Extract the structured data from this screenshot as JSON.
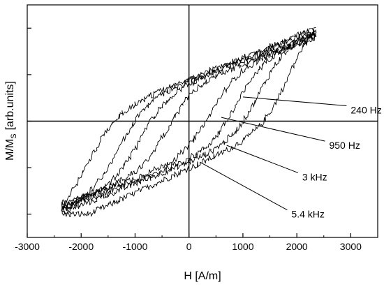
{
  "chart_data": {
    "type": "line",
    "xlabel": "H [A/m]",
    "ylabel_main": "M/M",
    "ylabel_sub": "S",
    "ylabel_unit": "[arb.units]",
    "xlim": [
      -3000,
      3500
    ],
    "ylim": [
      -1.25,
      1.25
    ],
    "x_ticks": [
      -3000,
      -2000,
      -1000,
      0,
      1000,
      2000,
      3000
    ],
    "y_tick_values": [
      -1.0,
      -0.5,
      0.0,
      0.5,
      1.0
    ],
    "y_tick_labels_shown": false,
    "zero_lines": true,
    "series": [
      {
        "name": "240 Hz",
        "coercive_field": 1850,
        "saturation_field": 2350,
        "saturation_m": 1.0,
        "remanence": 0.6
      },
      {
        "name": "950 Hz",
        "coercive_field": 1300,
        "saturation_field": 2350,
        "saturation_m": 0.97,
        "remanence": 0.45
      },
      {
        "name": "3 kHz",
        "coercive_field": 900,
        "saturation_field": 2350,
        "saturation_m": 0.94,
        "remanence": 0.3
      },
      {
        "name": "5.4 kHz",
        "coercive_field": 400,
        "saturation_field": 2350,
        "saturation_m": 0.9,
        "remanence": 0.15
      }
    ],
    "annotations": [
      {
        "text": "240 Hz",
        "x": 3000,
        "y": 0.12,
        "point_x": 1000,
        "point_y": 0.26
      },
      {
        "text": "950 Hz",
        "x": 2600,
        "y": -0.26,
        "point_x": 600,
        "point_y": 0.04
      },
      {
        "text": "3 kHz",
        "x": 2100,
        "y": -0.6,
        "point_x": 700,
        "point_y": -0.26
      },
      {
        "text": "5.4 kHz",
        "x": 1900,
        "y": -1.0,
        "point_x": 200,
        "point_y": -0.44
      }
    ]
  }
}
